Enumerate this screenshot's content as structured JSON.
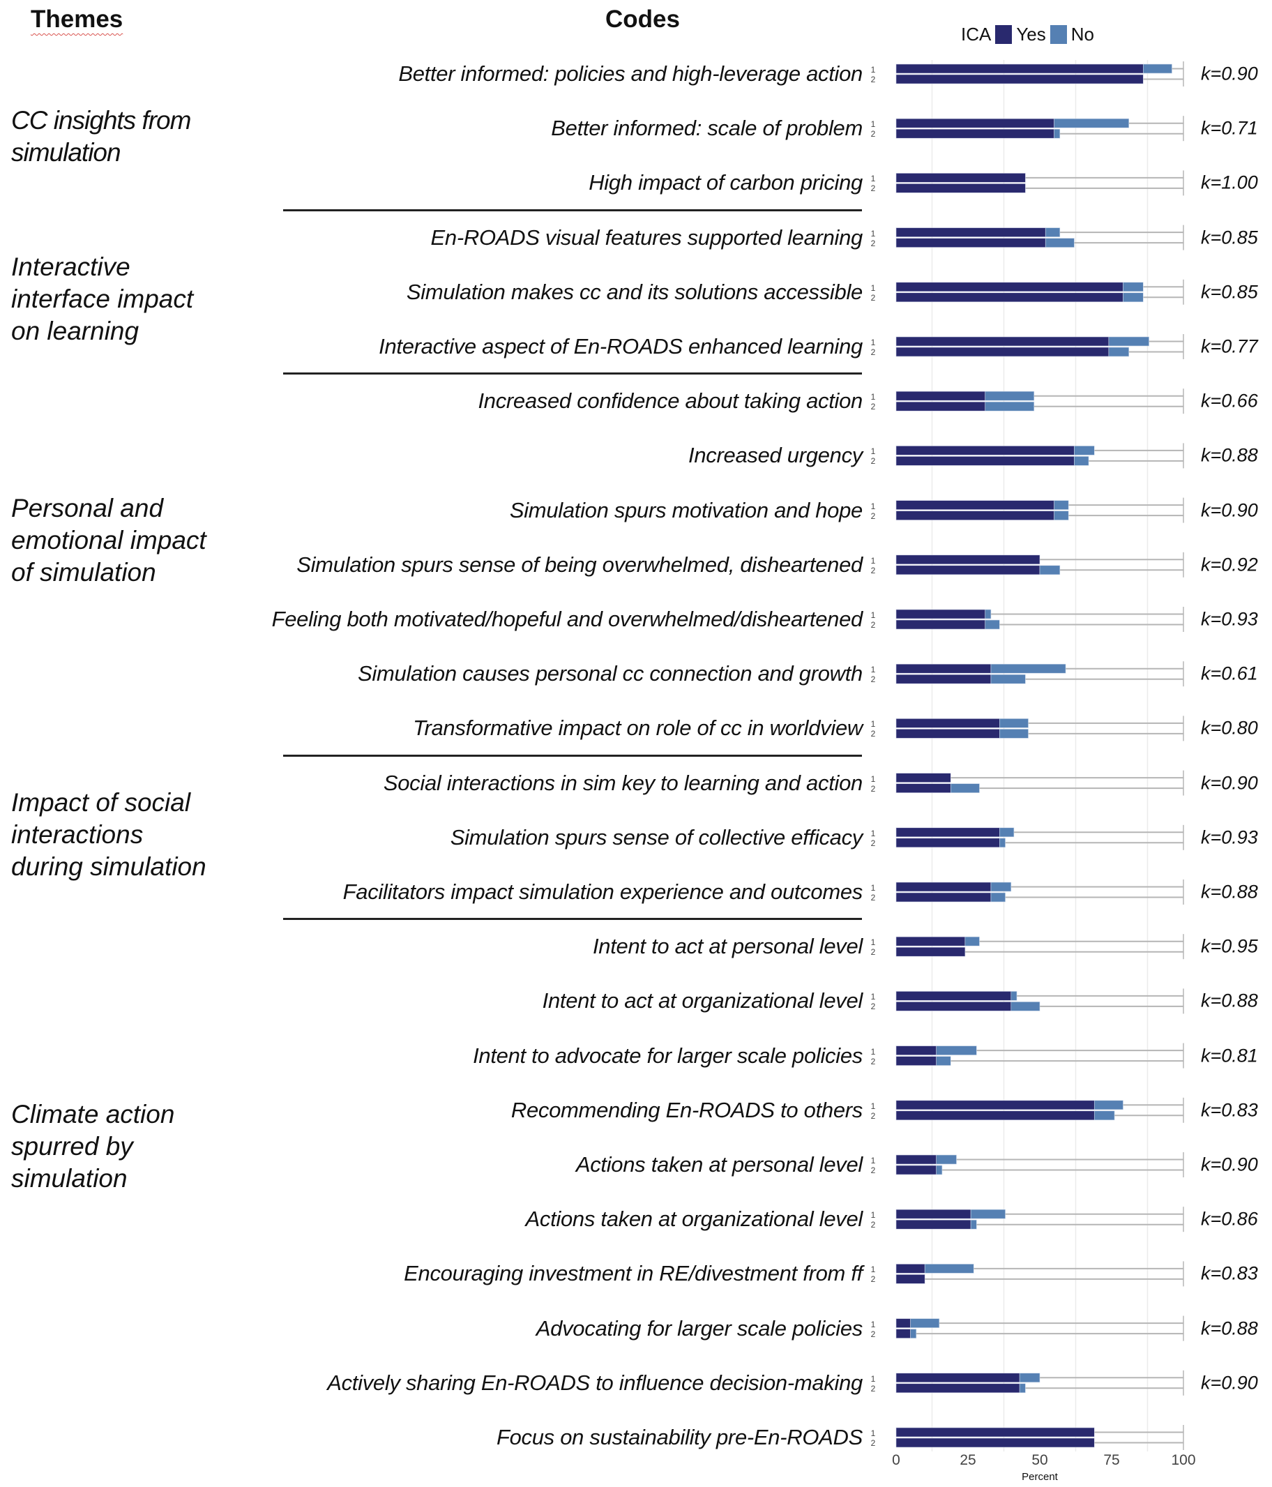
{
  "headers": {
    "themes": "Themes",
    "codes": "Codes"
  },
  "legend": {
    "title": "ICA",
    "items": [
      {
        "label": "Yes",
        "color": "#29296e"
      },
      {
        "label": "No",
        "color": "#5580b3"
      }
    ]
  },
  "themes": [
    {
      "label": "CC insights from simulation",
      "lines": [
        "CC insights from",
        "simulation"
      ]
    },
    {
      "label": "Interactive interface impact on learning",
      "lines": [
        "Interactive",
        "interface impact",
        "on learning"
      ]
    },
    {
      "label": "Personal and emotional impact of simulation",
      "lines": [
        "Personal and",
        "emotional impact",
        "of simulation"
      ]
    },
    {
      "label": "Impact of social interactions during simulation",
      "lines": [
        "Impact of social",
        "interactions",
        "during simulation"
      ]
    },
    {
      "label": "Climate action spurred by simulation",
      "lines": [
        "Climate action",
        "spurred by",
        "simulation"
      ]
    }
  ],
  "chart_data": {
    "type": "bar",
    "orientation": "horizontal",
    "stacked": true,
    "title": "",
    "xlabel": "Percent",
    "ylabel": "",
    "xlim": [
      0,
      100
    ],
    "xticks": [
      "0",
      "25",
      "50",
      "75",
      "100"
    ],
    "rater_labels": [
      "1",
      "2"
    ],
    "legend": {
      "title": "ICA",
      "entries": [
        "Yes",
        "No"
      ],
      "placement": "top"
    },
    "grid": true,
    "rows": [
      {
        "theme": 0,
        "code": "Better informed: policies and high-leverage action",
        "k": "k=0.90",
        "yes": [
          86,
          86
        ],
        "no": [
          10,
          0
        ]
      },
      {
        "theme": 0,
        "code": "Better informed: scale of problem",
        "k": "k=0.71",
        "yes": [
          55,
          55
        ],
        "no": [
          26,
          2
        ]
      },
      {
        "theme": 0,
        "code": "High impact of carbon pricing",
        "k": "k=1.00",
        "yes": [
          45,
          45
        ],
        "no": [
          0,
          0
        ]
      },
      {
        "theme": 1,
        "code": "En-ROADS visual features supported learning",
        "k": "k=0.85",
        "yes": [
          52,
          52
        ],
        "no": [
          5,
          10
        ]
      },
      {
        "theme": 1,
        "code": "Simulation makes cc and its solutions accessible",
        "k": "k=0.85",
        "yes": [
          79,
          79
        ],
        "no": [
          7,
          7
        ]
      },
      {
        "theme": 1,
        "code": "Interactive aspect of En-ROADS enhanced learning",
        "k": "k=0.77",
        "yes": [
          74,
          74
        ],
        "no": [
          14,
          7
        ]
      },
      {
        "theme": 2,
        "code": "Increased confidence about taking action",
        "k": "k=0.66",
        "yes": [
          31,
          31
        ],
        "no": [
          17,
          17
        ]
      },
      {
        "theme": 2,
        "code": "Increased urgency",
        "k": "k=0.88",
        "yes": [
          62,
          62
        ],
        "no": [
          7,
          5
        ]
      },
      {
        "theme": 2,
        "code": "Simulation spurs motivation and hope",
        "k": "k=0.90",
        "yes": [
          55,
          55
        ],
        "no": [
          5,
          5
        ]
      },
      {
        "theme": 2,
        "code": "Simulation spurs sense of being overwhelmed, disheartened",
        "k": "k=0.92",
        "yes": [
          50,
          50
        ],
        "no": [
          0,
          7
        ]
      },
      {
        "theme": 2,
        "code": "Feeling both motivated/hopeful and overwhelmed/disheartened",
        "k": "k=0.93",
        "yes": [
          31,
          31
        ],
        "no": [
          2,
          5
        ]
      },
      {
        "theme": 2,
        "code": "Simulation causes personal cc connection and growth",
        "k": "k=0.61",
        "yes": [
          33,
          33
        ],
        "no": [
          26,
          12
        ]
      },
      {
        "theme": 2,
        "code": "Transformative impact on role of cc in worldview",
        "k": "k=0.80",
        "yes": [
          36,
          36
        ],
        "no": [
          10,
          10
        ]
      },
      {
        "theme": 3,
        "code": "Social interactions in sim key to learning and action",
        "k": "k=0.90",
        "yes": [
          19,
          19
        ],
        "no": [
          0,
          10
        ]
      },
      {
        "theme": 3,
        "code": "Simulation spurs sense of collective efficacy",
        "k": "k=0.93",
        "yes": [
          36,
          36
        ],
        "no": [
          5,
          2
        ]
      },
      {
        "theme": 3,
        "code": "Facilitators impact simulation experience and outcomes",
        "k": "k=0.88",
        "yes": [
          33,
          33
        ],
        "no": [
          7,
          5
        ]
      },
      {
        "theme": 4,
        "code": "Intent to act at personal level",
        "k": "k=0.95",
        "yes": [
          24,
          24
        ],
        "no": [
          5,
          0
        ]
      },
      {
        "theme": 4,
        "code": "Intent to act at organizational level",
        "k": "k=0.88",
        "yes": [
          40,
          40
        ],
        "no": [
          2,
          10
        ]
      },
      {
        "theme": 4,
        "code": "Intent to advocate for larger scale policies",
        "k": "k=0.81",
        "yes": [
          14,
          14
        ],
        "no": [
          14,
          5
        ]
      },
      {
        "theme": 4,
        "code": "Recommending En-ROADS to others",
        "k": "k=0.83",
        "yes": [
          69,
          69
        ],
        "no": [
          10,
          7
        ]
      },
      {
        "theme": 4,
        "code": "Actions taken at personal level",
        "k": "k=0.90",
        "yes": [
          14,
          14
        ],
        "no": [
          7,
          2
        ]
      },
      {
        "theme": 4,
        "code": "Actions taken at organizational level",
        "k": "k=0.86",
        "yes": [
          26,
          26
        ],
        "no": [
          12,
          2
        ]
      },
      {
        "theme": 4,
        "code": "Encouraging investment in RE/divestment from ff",
        "k": "k=0.83",
        "yes": [
          10,
          10
        ],
        "no": [
          17,
          0
        ]
      },
      {
        "theme": 4,
        "code": "Advocating for larger scale policies",
        "k": "k=0.88",
        "yes": [
          5,
          5
        ],
        "no": [
          10,
          2
        ]
      },
      {
        "theme": 4,
        "code": "Actively sharing En-ROADS to influence decision-making",
        "k": "k=0.90",
        "yes": [
          43,
          43
        ],
        "no": [
          7,
          2
        ]
      },
      {
        "theme": 4,
        "code": "Focus on sustainability pre-En-ROADS",
        "k": "",
        "yes": [
          69,
          69
        ],
        "no": [
          0,
          0
        ]
      }
    ]
  }
}
